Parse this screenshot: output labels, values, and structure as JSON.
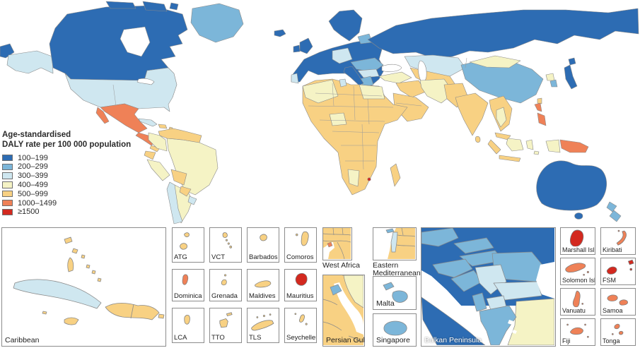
{
  "legend": {
    "title_lines": [
      "Age-standardised",
      "DALY rate per 100 000 population"
    ],
    "items": [
      {
        "label": "100–199",
        "color": "#2d6cb3"
      },
      {
        "label": "200–299",
        "color": "#7cb6d9"
      },
      {
        "label": "300–399",
        "color": "#cfe7f0"
      },
      {
        "label": "400–499",
        "color": "#f5f3c5"
      },
      {
        "label": "500–999",
        "color": "#f8d183"
      },
      {
        "label": "1000–1499",
        "color": "#ef8157"
      },
      {
        "label": "≥1500",
        "color": "#d3291f"
      }
    ]
  },
  "palette": {
    "dark_blue": "#2d6cb3",
    "mid_blue": "#7cb6d9",
    "light_blue": "#cfe7f0",
    "pale_yellow": "#f5f3c5",
    "tan": "#f8d183",
    "orange": "#ef8157",
    "red": "#d3291f",
    "border": "#8a8a8a",
    "sea": "#ffffff"
  },
  "map_colors": {
    "chukotka": "#2d6cb3",
    "alaska": "#cfe7f0",
    "canada": "#2d6cb3",
    "arctic_islands": "#2d6cb3",
    "greenland": "#7cb6d9",
    "iceland": "#2d6cb3",
    "usa": "#cfe7f0",
    "mexico": "#ef8157",
    "baja": "#ef8157",
    "central_america": "#ef8157",
    "central_america_south": "#f8d183",
    "cuba": "#cfe7f0",
    "hispaniola": "#f8d183",
    "antilles": "#f8d183",
    "venezuela_guyanas": "#f8d183",
    "colombia": "#f5f3c5",
    "ecuador": "#f8d183",
    "peru": "#f5f3c5",
    "brazil": "#f5f3c5",
    "bolivia": "#f8d183",
    "paraguay": "#f8d183",
    "argentina": "#f5f3c5",
    "chile": "#cfe7f0",
    "uruguay": "#cfe7f0",
    "europe": "#2d6cb3",
    "scandinavia": "#2d6cb3",
    "uk": "#2d6cb3",
    "ireland": "#2d6cb3",
    "portugal": "#cfe7f0",
    "germany_czech": "#cfe7f0",
    "baltics": "#7cb6d9",
    "hungary_romania": "#7cb6d9",
    "serbia_bulgaria": "#cfe7f0",
    "greece": "#7cb6d9",
    "italy": "#2d6cb3",
    "russia": "#2d6cb3",
    "kazakhstan": "#cfe7f0",
    "central_asia": "#f8d183",
    "china": "#7cb6d9",
    "mongolia": "#f5f3c5",
    "japan": "#2d6cb3",
    "south_korea": "#7cb6d9",
    "north_korea": "#f5f3c5",
    "taiwan": "#f8d183",
    "turkey": "#f5f3c5",
    "levant_iraq": "#f8d183",
    "iran": "#f5f3c5",
    "arabia": "#f8d183",
    "afghanistan_pakistan": "#f8d183",
    "india": "#f8d183",
    "sri_lanka": "#f8d183",
    "indochina": "#f8d183",
    "thailand": "#f5f3c5",
    "malaysia": "#f8d183",
    "sumatra": "#f8d183",
    "borneo": "#f5f3c5",
    "java": "#f8d183",
    "sulawesi": "#f5f3c5",
    "west_papua": "#f5f3c5",
    "papua_new_guinea": "#ef8157",
    "philippines": "#ef8157",
    "north_africa": "#f5f3c5",
    "tunisia": "#cfe7f0",
    "egypt": "#f5f3c5",
    "africa": "#f8d183",
    "nigeria": "#f5f3c5",
    "namibia": "#f5f3c5",
    "madagascar": "#f8d183",
    "swaziland": "#d3291f",
    "australia": "#2d6cb3",
    "tasmania": "#2d6cb3",
    "new_zealand": "#7cb6d9"
  },
  "insets": {
    "caribbean": {
      "label": "Caribbean"
    },
    "small_grid": [
      {
        "label": "ATG",
        "color": "#f8d183"
      },
      {
        "label": "VCT",
        "color": "#f8d183"
      },
      {
        "label": "Barbados",
        "color": "#f8d183"
      },
      {
        "label": "Comoros",
        "color": "#f8d183"
      },
      {
        "label": "Dominica",
        "color": "#ef8157"
      },
      {
        "label": "Grenada",
        "color": "#f8d183"
      },
      {
        "label": "Maldives",
        "color": "#f8d183"
      },
      {
        "label": "Mauritius",
        "color": "#d3291f"
      },
      {
        "label": "LCA",
        "color": "#f8d183"
      },
      {
        "label": "TTO",
        "color": "#f8d183"
      },
      {
        "label": "TLS",
        "color": "#f8d183"
      },
      {
        "label": "Seychelles",
        "color": "#f8d183"
      }
    ],
    "west_africa": {
      "label": "West Africa"
    },
    "eastern_mediterranean": {
      "label_line1": "Eastern",
      "label_line2": "Mediterranean"
    },
    "persian_gulf": {
      "label": "Persian Gulf"
    },
    "malta": {
      "label": "Malta",
      "color": "#7cb6d9"
    },
    "singapore": {
      "label": "Singapore",
      "color": "#7cb6d9"
    },
    "balkan": {
      "label": "Balkan Peninsula"
    },
    "pacific_grid": [
      {
        "label": "Marshall Isl",
        "color": "#d3291f"
      },
      {
        "label": "Kiribati",
        "color": "#ef8157"
      },
      {
        "label": "Solomon Isl",
        "color": "#ef8157"
      },
      {
        "label": "FSM",
        "color": "#d3291f"
      },
      {
        "label": "Vanuatu",
        "color": "#ef8157"
      },
      {
        "label": "Samoa",
        "color": "#ef8157"
      },
      {
        "label": "Fiji",
        "color": "#ef8157"
      },
      {
        "label": "Tonga",
        "color": "#ef8157"
      }
    ]
  }
}
